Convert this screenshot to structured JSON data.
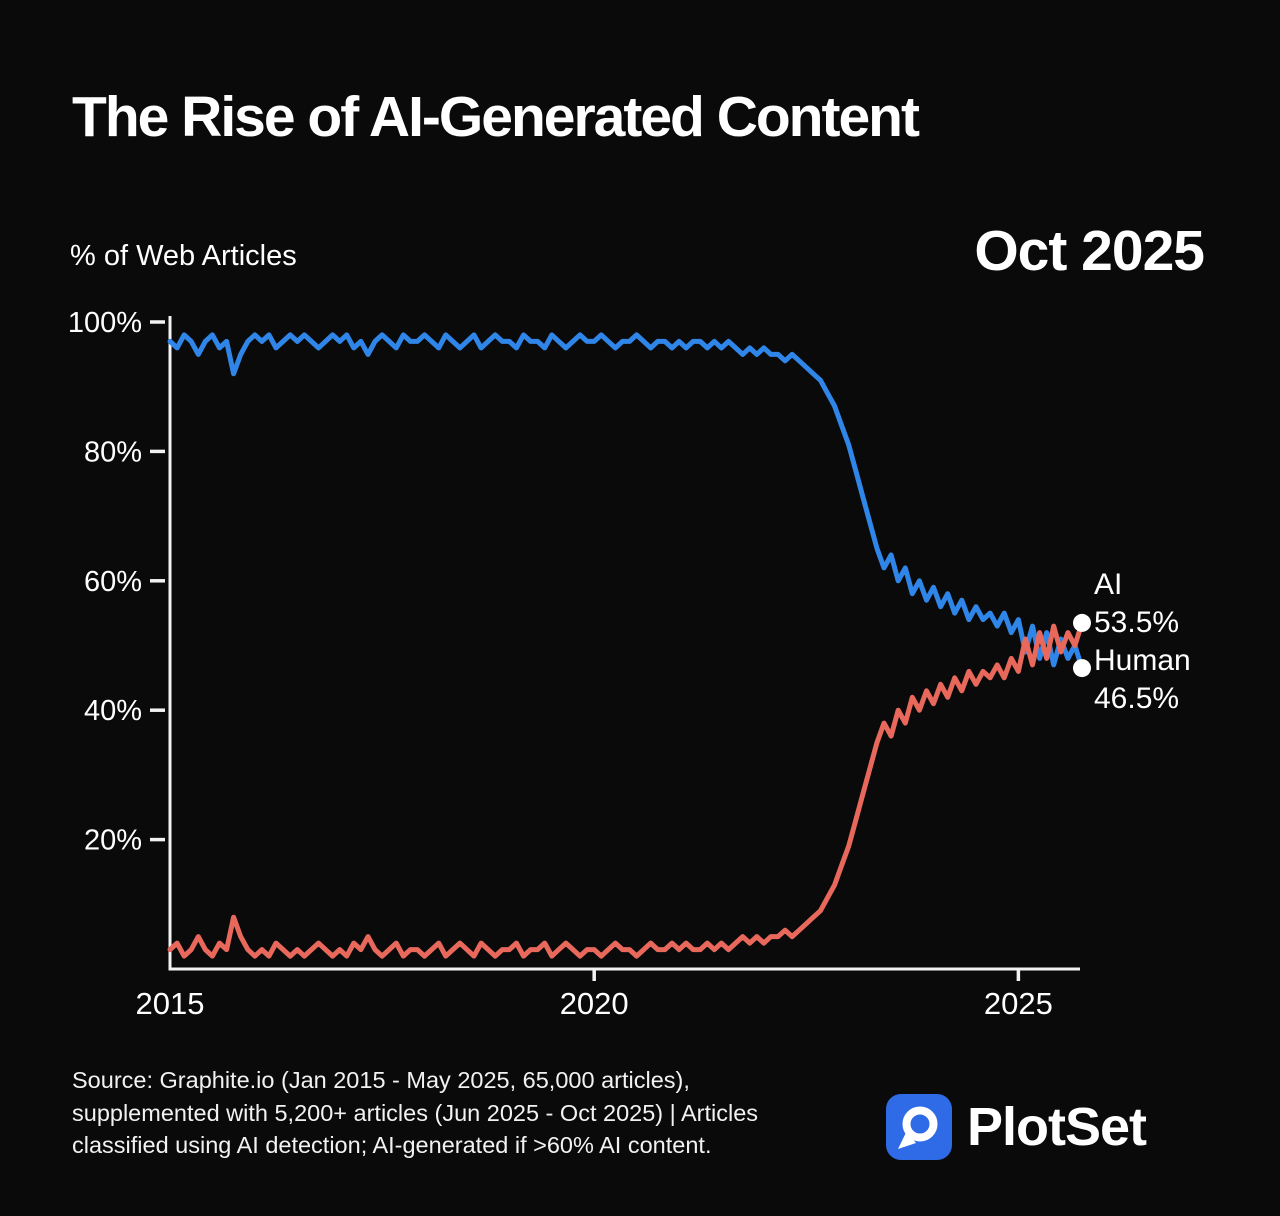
{
  "header": {
    "date_label": "Oct 2025"
  },
  "chart_data": {
    "type": "line",
    "title": "The Rise of AI-Generated Content",
    "ylabel": "% of Web Articles",
    "xlabel": "",
    "grid": false,
    "legend_position": "right-end",
    "ylim": [
      0,
      100
    ],
    "x_start": 2015,
    "x_step_years": 0.0833333,
    "x_end_label": "Oct 2025",
    "yticks": [
      {
        "value": 100,
        "label": "100%"
      },
      {
        "value": 80,
        "label": "80%"
      },
      {
        "value": 60,
        "label": "60%"
      },
      {
        "value": 40,
        "label": "40%"
      },
      {
        "value": 20,
        "label": "20%"
      }
    ],
    "xticks": [
      {
        "value": 2015,
        "label": "2015"
      },
      {
        "value": 2020,
        "label": "2020"
      },
      {
        "value": 2025,
        "label": "2025"
      }
    ],
    "series": [
      {
        "name": "Human",
        "color": "#2f86e8",
        "end_label": "Human",
        "end_value": 46.5,
        "end_value_label": "46.5%",
        "values": [
          97,
          96,
          98,
          97,
          95,
          97,
          98,
          96,
          97,
          92,
          95,
          97,
          98,
          97,
          98,
          96,
          97,
          98,
          97,
          98,
          97,
          96,
          97,
          98,
          97,
          98,
          96,
          97,
          95,
          97,
          98,
          97,
          96,
          98,
          97,
          97,
          98,
          97,
          96,
          98,
          97,
          96,
          97,
          98,
          96,
          97,
          98,
          97,
          97,
          96,
          98,
          97,
          97,
          96,
          98,
          97,
          96,
          97,
          98,
          97,
          97,
          98,
          97,
          96,
          97,
          97,
          98,
          97,
          96,
          97,
          97,
          96,
          97,
          96,
          97,
          97,
          96,
          97,
          96,
          97,
          96,
          95,
          96,
          95,
          96,
          95,
          95,
          94,
          95,
          94,
          93,
          92,
          91,
          89,
          87,
          84,
          81,
          77,
          73,
          69,
          65,
          62,
          64,
          60,
          62,
          58,
          60,
          57,
          59,
          56,
          58,
          55,
          57,
          54,
          56,
          54,
          55,
          53,
          55,
          52,
          54,
          49,
          53,
          48,
          52,
          47,
          51,
          48,
          50,
          46.5
        ]
      },
      {
        "name": "AI",
        "color": "#e8695c",
        "end_label": "AI",
        "end_value": 53.5,
        "end_value_label": "53.5%",
        "values": [
          3,
          4,
          2,
          3,
          5,
          3,
          2,
          4,
          3,
          8,
          5,
          3,
          2,
          3,
          2,
          4,
          3,
          2,
          3,
          2,
          3,
          4,
          3,
          2,
          3,
          2,
          4,
          3,
          5,
          3,
          2,
          3,
          4,
          2,
          3,
          3,
          2,
          3,
          4,
          2,
          3,
          4,
          3,
          2,
          4,
          3,
          2,
          3,
          3,
          4,
          2,
          3,
          3,
          4,
          2,
          3,
          4,
          3,
          2,
          3,
          3,
          2,
          3,
          4,
          3,
          3,
          2,
          3,
          4,
          3,
          3,
          4,
          3,
          4,
          3,
          3,
          4,
          3,
          4,
          3,
          4,
          5,
          4,
          5,
          4,
          5,
          5,
          6,
          5,
          6,
          7,
          8,
          9,
          11,
          13,
          16,
          19,
          23,
          27,
          31,
          35,
          38,
          36,
          40,
          38,
          42,
          40,
          43,
          41,
          44,
          42,
          45,
          43,
          46,
          44,
          46,
          45,
          47,
          45,
          48,
          46,
          51,
          47,
          52,
          48,
          53,
          49,
          52,
          50,
          53.5
        ]
      }
    ]
  },
  "footer": {
    "source_line1": "Source: Graphite.io (Jan 2015 - May 2025, 65,000 articles),",
    "source_line2": "supplemented with 5,200+ articles (Jun 2025 - Oct 2025) | Articles",
    "source_line3": "classified using AI detection; AI-generated if >60% AI content.",
    "brand": "PlotSet"
  },
  "colors": {
    "background": "#0a0a0a",
    "text": "#ffffff",
    "axis": "#f2f2f2",
    "human_blue": "#2f86e8",
    "ai_red": "#e8695c",
    "brand_blue": "#2f6be6",
    "endpoint_dot": "#ffffff"
  }
}
